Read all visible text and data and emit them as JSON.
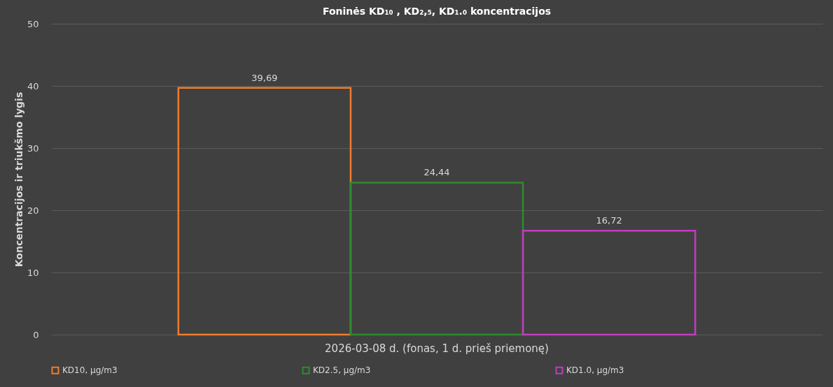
{
  "chart_data": {
    "type": "bar",
    "title": "Foninės KD₁₀ , KD₂,₅, KD₁.₀ koncentracijos",
    "ylabel": "Koncentracijos ir triukšmo lygis",
    "categories": [
      "2026-03-08 d. (fonas, 1 d. prieš priemonę)"
    ],
    "series": [
      {
        "name": "KD10, µg/m3",
        "color": "#f07c2c",
        "values": [
          39.69
        ],
        "value_labels": [
          "39,69"
        ]
      },
      {
        "name": "KD2.5, µg/m3",
        "color": "#2f8a2f",
        "values": [
          24.44
        ],
        "value_labels": [
          "24,44"
        ]
      },
      {
        "name": "KD1.0, µg/m3",
        "color": "#c03cc0",
        "values": [
          16.72
        ],
        "value_labels": [
          "16,72"
        ]
      }
    ],
    "ylim": [
      0,
      50
    ],
    "yticks": [
      0,
      10,
      20,
      30,
      40,
      50
    ],
    "grid": "y",
    "legend": "bottom"
  }
}
